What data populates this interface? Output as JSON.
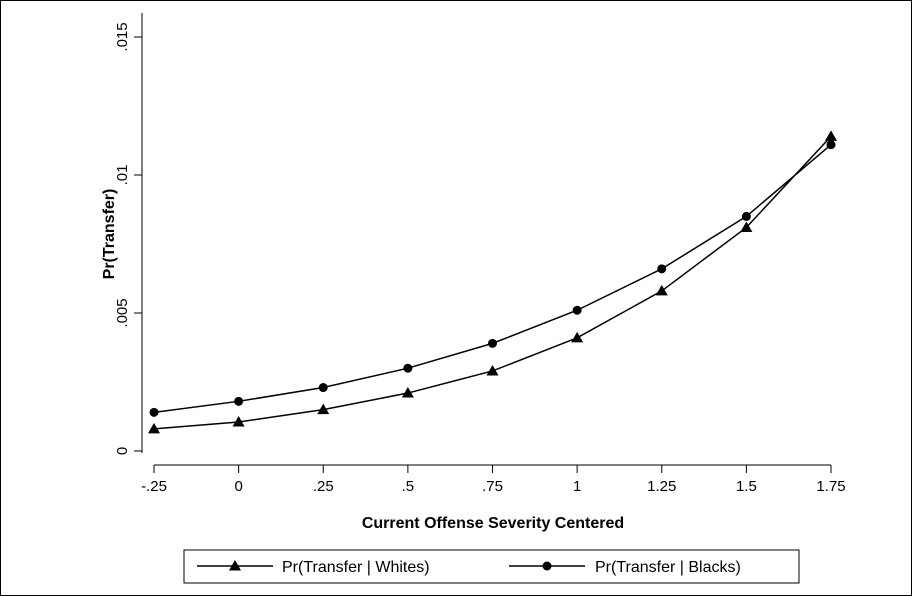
{
  "chart_data": {
    "type": "line",
    "title": "",
    "xlabel": "Current Offense Severity Centered",
    "ylabel": "Pr(Transfer)",
    "xlim": [
      -0.25,
      1.75
    ],
    "ylim": [
      0,
      0.015
    ],
    "x_ticks": [
      -0.25,
      0,
      0.25,
      0.5,
      0.75,
      1,
      1.25,
      1.5,
      1.75
    ],
    "x_tick_labels": [
      "-.25",
      "0",
      ".25",
      ".5",
      ".75",
      "1",
      "1.25",
      "1.5",
      "1.75"
    ],
    "y_ticks": [
      0,
      0.005,
      0.01,
      0.015
    ],
    "y_tick_labels": [
      "0",
      ".005",
      ".01",
      ".015"
    ],
    "grid": false,
    "legend_position": "bottom",
    "x": [
      -0.25,
      0,
      0.25,
      0.5,
      0.75,
      1,
      1.25,
      1.5,
      1.75
    ],
    "series": [
      {
        "name": "Pr(Transfer | Whites)",
        "marker": "triangle",
        "color": "#000000",
        "values": [
          0.0008,
          0.00105,
          0.0015,
          0.0021,
          0.0029,
          0.0041,
          0.0058,
          0.0081,
          0.0114
        ]
      },
      {
        "name": "Pr(Transfer | Blacks)",
        "marker": "circle",
        "color": "#000000",
        "values": [
          0.0014,
          0.0018,
          0.0023,
          0.003,
          0.0039,
          0.0051,
          0.0066,
          0.0085,
          0.0111
        ]
      }
    ]
  }
}
